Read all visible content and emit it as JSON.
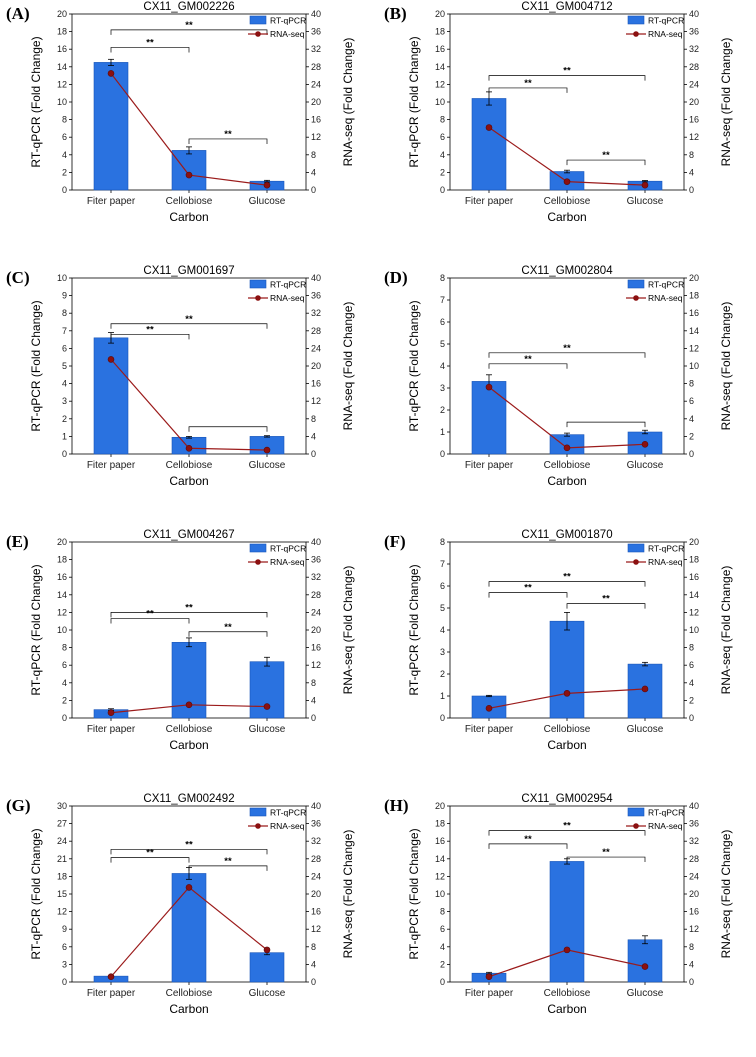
{
  "colors": {
    "bar": "#2a72e0",
    "bar_edge": "#1a56b8",
    "line": "#9b1b1b",
    "marker": "#8b1010"
  },
  "chart_data": [
    {
      "letter": "(A)",
      "type": "bar",
      "title": "CX11_GM002226",
      "categories": [
        "Fiter paper",
        "Cellobiose",
        "Glucose"
      ],
      "xlabel": "Carbon",
      "ylabel": "RT-qPCR (Fold Change)",
      "y2label": "RNA-seq (Fold Change)",
      "ylim": [
        0,
        20
      ],
      "y_ticks": [
        0,
        2,
        4,
        6,
        8,
        10,
        12,
        14,
        16,
        18,
        20
      ],
      "y2lim": [
        0,
        40
      ],
      "y2_ticks": [
        0,
        4,
        8,
        12,
        16,
        20,
        24,
        28,
        32,
        36,
        40
      ],
      "legend": [
        "RT-qPCR",
        "RNA-seq"
      ],
      "series": [
        {
          "name": "RT-qPCR",
          "type": "bar",
          "values": [
            14.5,
            4.5,
            1.0
          ],
          "errors": [
            0.35,
            0.4,
            0.1
          ]
        },
        {
          "name": "RNA-seq",
          "type": "line",
          "axis": "right",
          "values": [
            26.5,
            3.4,
            1.1
          ]
        }
      ],
      "significance": [
        {
          "from": 0,
          "to": 2,
          "level": 18.2,
          "label": "**"
        },
        {
          "from": 0,
          "to": 1,
          "level": 16.2,
          "label": "**"
        },
        {
          "from": 1,
          "to": 2,
          "level": 5.8,
          "label": "**"
        }
      ]
    },
    {
      "letter": "(B)",
      "type": "bar",
      "title": "CX11_GM004712",
      "categories": [
        "Fiter paper",
        "Cellobiose",
        "Glucose"
      ],
      "xlabel": "Carbon",
      "ylabel": "RT-qPCR (Fold Change)",
      "y2label": "RNA-seq (Fold Change)",
      "ylim": [
        0,
        20
      ],
      "y_ticks": [
        0,
        2,
        4,
        6,
        8,
        10,
        12,
        14,
        16,
        18,
        20
      ],
      "y2lim": [
        0,
        40
      ],
      "y2_ticks": [
        0,
        4,
        8,
        12,
        16,
        20,
        24,
        28,
        32,
        36,
        40
      ],
      "legend": [
        "RT-qPCR",
        "RNA-seq"
      ],
      "series": [
        {
          "name": "RT-qPCR",
          "type": "bar",
          "values": [
            10.4,
            2.1,
            1.0
          ],
          "errors": [
            0.75,
            0.15,
            0.08
          ]
        },
        {
          "name": "RNA-seq",
          "type": "line",
          "axis": "right",
          "values": [
            14.2,
            1.9,
            1.1
          ]
        }
      ],
      "significance": [
        {
          "from": 0,
          "to": 2,
          "level": 13.0,
          "label": "**"
        },
        {
          "from": 0,
          "to": 1,
          "level": 11.6,
          "label": "**"
        },
        {
          "from": 1,
          "to": 2,
          "level": 3.4,
          "label": "**"
        }
      ]
    },
    {
      "letter": "(C)",
      "type": "bar",
      "title": "CX11_GM001697",
      "categories": [
        "Fiter paper",
        "Cellobiose",
        "Glucose"
      ],
      "xlabel": "Carbon",
      "ylabel": "RT-qPCR (Fold Change)",
      "y2label": "RNA-seq (Fold Change)",
      "ylim": [
        0,
        10
      ],
      "y_ticks": [
        0,
        1,
        2,
        3,
        4,
        5,
        6,
        7,
        8,
        9,
        10
      ],
      "y2lim": [
        0,
        40
      ],
      "y2_ticks": [
        0,
        4,
        8,
        12,
        16,
        20,
        24,
        28,
        32,
        36,
        40
      ],
      "legend": [
        "RT-qPCR",
        "RNA-seq"
      ],
      "series": [
        {
          "name": "RT-qPCR",
          "type": "bar",
          "values": [
            6.6,
            0.95,
            1.0
          ],
          "errors": [
            0.3,
            0.05,
            0.04
          ]
        },
        {
          "name": "RNA-seq",
          "type": "line",
          "axis": "right",
          "values": [
            21.5,
            1.3,
            0.9
          ]
        }
      ],
      "significance": [
        {
          "from": 0,
          "to": 2,
          "level": 7.4,
          "label": "**"
        },
        {
          "from": 0,
          "to": 1,
          "level": 6.8,
          "label": "**"
        },
        {
          "from": 1,
          "to": 2,
          "level": 1.55,
          "label": ""
        }
      ]
    },
    {
      "letter": "(D)",
      "type": "bar",
      "title": "CX11_GM002804",
      "categories": [
        "Fiter paper",
        "Cellobiose",
        "Glucose"
      ],
      "xlabel": "Carbon",
      "ylabel": "RT-qPCR (Fold Change)",
      "y2label": "RNA-seq (Fold Change)",
      "ylim": [
        0,
        8
      ],
      "y_ticks": [
        0,
        1,
        2,
        3,
        4,
        5,
        6,
        7,
        8
      ],
      "y2lim": [
        0,
        20
      ],
      "y2_ticks": [
        0,
        2,
        4,
        6,
        8,
        10,
        12,
        14,
        16,
        18,
        20
      ],
      "legend": [
        "RT-qPCR",
        "RNA-seq"
      ],
      "series": [
        {
          "name": "RT-qPCR",
          "type": "bar",
          "values": [
            3.3,
            0.88,
            1.0
          ],
          "errors": [
            0.3,
            0.07,
            0.08
          ]
        },
        {
          "name": "RNA-seq",
          "type": "line",
          "axis": "right",
          "values": [
            7.6,
            0.7,
            1.1
          ]
        }
      ],
      "significance": [
        {
          "from": 0,
          "to": 2,
          "level": 4.6,
          "label": "**"
        },
        {
          "from": 0,
          "to": 1,
          "level": 4.1,
          "label": "**"
        },
        {
          "from": 1,
          "to": 2,
          "level": 1.45,
          "label": ""
        }
      ]
    },
    {
      "letter": "(E)",
      "type": "bar",
      "title": "CX11_GM004267",
      "categories": [
        "Fiter paper",
        "Cellobiose",
        "Glucose"
      ],
      "xlabel": "Carbon",
      "ylabel": "RT-qPCR (Fold Change)",
      "y2label": "RNA-seq (Fold Change)",
      "ylim": [
        0,
        20
      ],
      "y_ticks": [
        0,
        2,
        4,
        6,
        8,
        10,
        12,
        14,
        16,
        18,
        20
      ],
      "y2lim": [
        0,
        40
      ],
      "y2_ticks": [
        0,
        4,
        8,
        12,
        16,
        20,
        24,
        28,
        32,
        36,
        40
      ],
      "legend": [
        "RT-qPCR",
        "RNA-seq"
      ],
      "series": [
        {
          "name": "RT-qPCR",
          "type": "bar",
          "values": [
            0.95,
            8.6,
            6.4
          ],
          "errors": [
            0.1,
            0.5,
            0.5
          ]
        },
        {
          "name": "RNA-seq",
          "type": "line",
          "axis": "right",
          "values": [
            1.2,
            3.0,
            2.6
          ]
        }
      ],
      "significance": [
        {
          "from": 0,
          "to": 2,
          "level": 12.0,
          "label": "**"
        },
        {
          "from": 0,
          "to": 1,
          "level": 11.3,
          "label": "**"
        },
        {
          "from": 1,
          "to": 2,
          "level": 9.8,
          "label": "**"
        }
      ]
    },
    {
      "letter": "(F)",
      "type": "bar",
      "title": "CX11_GM001870",
      "categories": [
        "Fiter paper",
        "Cellobiose",
        "Glucose"
      ],
      "xlabel": "Carbon",
      "ylabel": "RT-qPCR (Fold Change)",
      "y2label": "RNA-seq (Fold Change)",
      "ylim": [
        0,
        8
      ],
      "y_ticks": [
        0,
        1,
        2,
        3,
        4,
        5,
        6,
        7,
        8
      ],
      "y2lim": [
        0,
        20
      ],
      "y2_ticks": [
        0,
        2,
        4,
        6,
        8,
        10,
        12,
        14,
        16,
        18,
        20
      ],
      "legend": [
        "RT-qPCR",
        "RNA-seq"
      ],
      "series": [
        {
          "name": "RT-qPCR",
          "type": "bar",
          "values": [
            1.0,
            4.4,
            2.45
          ],
          "errors": [
            0.03,
            0.4,
            0.08
          ]
        },
        {
          "name": "RNA-seq",
          "type": "line",
          "axis": "right",
          "values": [
            1.1,
            2.8,
            3.3
          ]
        }
      ],
      "significance": [
        {
          "from": 0,
          "to": 2,
          "level": 6.2,
          "label": "**"
        },
        {
          "from": 0,
          "to": 1,
          "level": 5.7,
          "label": "**"
        },
        {
          "from": 1,
          "to": 2,
          "level": 5.2,
          "label": "**"
        }
      ]
    },
    {
      "letter": "(G)",
      "type": "bar",
      "title": "CX11_GM002492",
      "categories": [
        "Fiter paper",
        "Cellobiose",
        "Glucose"
      ],
      "xlabel": "Carbon",
      "ylabel": "RT-qPCR (Fold Change)",
      "y2label": "RNA-seq (Fold Change)",
      "ylim": [
        0,
        30
      ],
      "y_ticks": [
        0,
        3,
        6,
        9,
        12,
        15,
        18,
        21,
        24,
        27,
        30
      ],
      "y2lim": [
        0,
        40
      ],
      "y2_ticks": [
        0,
        4,
        8,
        12,
        16,
        20,
        24,
        28,
        32,
        36,
        40
      ],
      "legend": [
        "RT-qPCR",
        "RNA-seq"
      ],
      "series": [
        {
          "name": "RT-qPCR",
          "type": "bar",
          "values": [
            1.0,
            18.5,
            5.0
          ],
          "errors": [
            0.1,
            1.0,
            0.35
          ]
        },
        {
          "name": "RNA-seq",
          "type": "line",
          "axis": "right",
          "values": [
            1.2,
            21.5,
            7.3
          ]
        }
      ],
      "significance": [
        {
          "from": 0,
          "to": 2,
          "level": 22.6,
          "label": "**"
        },
        {
          "from": 0,
          "to": 1,
          "level": 21.2,
          "label": "**"
        },
        {
          "from": 1,
          "to": 2,
          "level": 19.8,
          "label": "**"
        }
      ]
    },
    {
      "letter": "(H)",
      "type": "bar",
      "title": "CX11_GM002954",
      "categories": [
        "Fiter paper",
        "Cellobiose",
        "Glucose"
      ],
      "xlabel": "Carbon",
      "ylabel": "RT-qPCR (Fold Change)",
      "y2label": "RNA-seq (Fold Change)",
      "ylim": [
        0,
        20
      ],
      "y_ticks": [
        0,
        2,
        4,
        6,
        8,
        10,
        12,
        14,
        16,
        18,
        20
      ],
      "y2lim": [
        0,
        40
      ],
      "y2_ticks": [
        0,
        4,
        8,
        12,
        16,
        20,
        24,
        28,
        32,
        36,
        40
      ],
      "legend": [
        "RT-qPCR",
        "RNA-seq"
      ],
      "series": [
        {
          "name": "RT-qPCR",
          "type": "bar",
          "values": [
            1.0,
            13.7,
            4.8
          ],
          "errors": [
            0.1,
            0.3,
            0.45
          ]
        },
        {
          "name": "RNA-seq",
          "type": "line",
          "axis": "right",
          "values": [
            1.2,
            7.3,
            3.5
          ]
        }
      ],
      "significance": [
        {
          "from": 0,
          "to": 2,
          "level": 17.2,
          "label": "**"
        },
        {
          "from": 0,
          "to": 1,
          "level": 15.7,
          "label": "**"
        },
        {
          "from": 1,
          "to": 2,
          "level": 14.2,
          "label": "**"
        }
      ]
    }
  ]
}
